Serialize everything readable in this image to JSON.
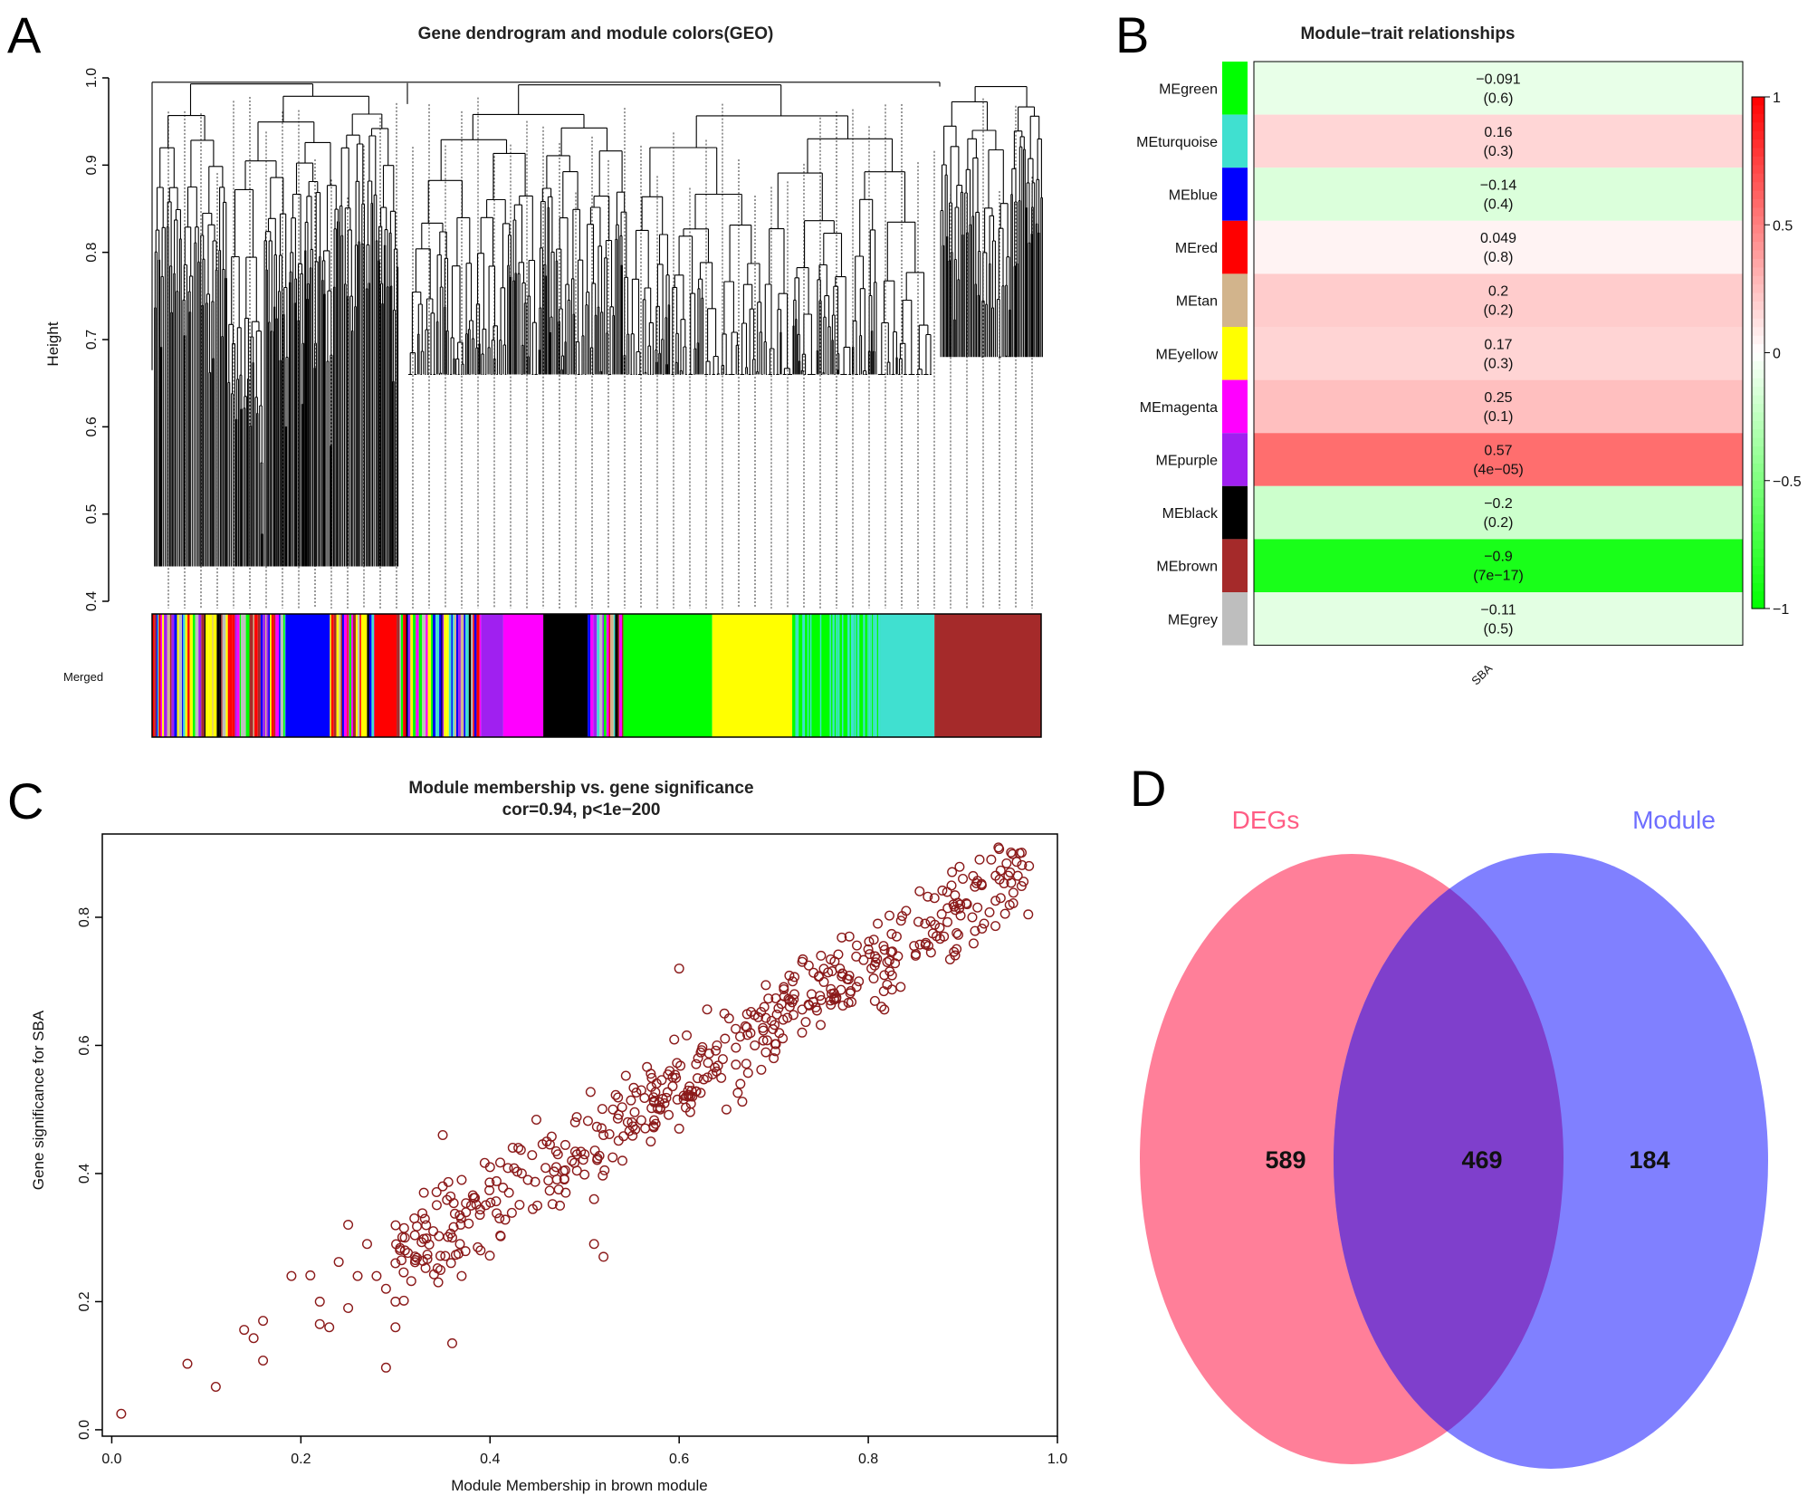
{
  "panels": {
    "A": {
      "letter": "A"
    },
    "B": {
      "letter": "B"
    },
    "C": {
      "letter": "C"
    },
    "D": {
      "letter": "D"
    }
  },
  "chart_data": [
    {
      "panel": "A",
      "type": "dendrogram",
      "title": "Gene dendrogram and module colors(GEO)",
      "ylabel": "Height",
      "ylim": [
        0.4,
        1.0
      ],
      "yticks": [
        "0.4",
        "0.5",
        "0.6",
        "0.7",
        "0.8",
        "0.9",
        "1.0"
      ],
      "color_row_label": "Merged",
      "module_order": [
        "mixed",
        "blue",
        "mixed",
        "red",
        "mixed",
        "purple",
        "magenta",
        "black",
        "mixed",
        "green",
        "yellow",
        "green",
        "turquoise",
        "brown"
      ],
      "module_colors": {
        "blue": "#0000ff",
        "red": "#ff0000",
        "purple": "#a020f0",
        "magenta": "#ff00ff",
        "black": "#000000",
        "green": "#00ff00",
        "yellow": "#ffff00",
        "turquoise": "#40e0d0",
        "brown": "#a52a2a",
        "tan": "#d2b48c",
        "grey": "#bebebe"
      }
    },
    {
      "panel": "B",
      "type": "heatmap",
      "title": "Module−trait relationships",
      "xlabel": "SBA",
      "rows": [
        {
          "module": "MEgreen",
          "color": "#00ff00",
          "cor": "−0.091",
          "p": "(0.6)",
          "value": -0.091
        },
        {
          "module": "MEturquoise",
          "color": "#40e0d0",
          "cor": "0.16",
          "p": "(0.3)",
          "value": 0.16
        },
        {
          "module": "MEblue",
          "color": "#0000ff",
          "cor": "−0.14",
          "p": "(0.4)",
          "value": -0.14
        },
        {
          "module": "MEred",
          "color": "#ff0000",
          "cor": "0.049",
          "p": "(0.8)",
          "value": 0.049
        },
        {
          "module": "MEtan",
          "color": "#d2b48c",
          "cor": "0.2",
          "p": "(0.2)",
          "value": 0.2
        },
        {
          "module": "MEyellow",
          "color": "#ffff00",
          "cor": "0.17",
          "p": "(0.3)",
          "value": 0.17
        },
        {
          "module": "MEmagenta",
          "color": "#ff00ff",
          "cor": "0.25",
          "p": "(0.1)",
          "value": 0.25
        },
        {
          "module": "MEpurple",
          "color": "#a020f0",
          "cor": "0.57",
          "p": "(4e−05)",
          "value": 0.57
        },
        {
          "module": "MEblack",
          "color": "#000000",
          "cor": "−0.2",
          "p": "(0.2)",
          "value": -0.2
        },
        {
          "module": "MEbrown",
          "color": "#a52a2a",
          "cor": "−0.9",
          "p": "(7e−17)",
          "value": -0.9
        },
        {
          "module": "MEgrey",
          "color": "#bebebe",
          "cor": "−0.11",
          "p": "(0.5)",
          "value": -0.11
        }
      ],
      "colorbar": {
        "range": [
          -1,
          1
        ],
        "ticks": [
          "1",
          "0.5",
          "0",
          "−0.5",
          "−1"
        ],
        "ticks_values": [
          1,
          0.5,
          0,
          -0.5,
          -1
        ]
      }
    },
    {
      "panel": "C",
      "type": "scatter",
      "title": "Module membership vs. gene significance",
      "subtitle": "cor=0.94, p<1e−200",
      "xlabel": "Module Membership in brown module",
      "ylabel": "Gene significance for  SBA",
      "xlim": [
        -0.01,
        1.0
      ],
      "ylim": [
        -0.01,
        0.93
      ],
      "xticks": [
        "0.0",
        "0.2",
        "0.4",
        "0.6",
        "0.8",
        "1.0"
      ],
      "xticks_values": [
        0,
        0.2,
        0.4,
        0.6,
        0.8,
        1.0
      ],
      "yticks": [
        "0.0",
        "0.2",
        "0.4",
        "0.6",
        "0.8"
      ],
      "yticks_values": [
        0,
        0.2,
        0.4,
        0.6,
        0.8
      ],
      "point_color": "#8b1a1a",
      "points": [
        [
          0.01,
          0.025
        ],
        [
          0.08,
          0.103
        ],
        [
          0.11,
          0.067
        ],
        [
          0.14,
          0.156
        ],
        [
          0.15,
          0.143
        ],
        [
          0.16,
          0.17
        ],
        [
          0.16,
          0.108
        ],
        [
          0.19,
          0.24
        ],
        [
          0.21,
          0.241
        ],
        [
          0.22,
          0.2
        ],
        [
          0.22,
          0.165
        ],
        [
          0.23,
          0.16
        ],
        [
          0.24,
          0.262
        ],
        [
          0.25,
          0.19
        ],
        [
          0.25,
          0.32
        ],
        [
          0.26,
          0.24
        ],
        [
          0.27,
          0.29
        ],
        [
          0.28,
          0.24
        ],
        [
          0.29,
          0.22
        ],
        [
          0.3,
          0.26
        ],
        [
          0.3,
          0.2
        ],
        [
          0.31,
          0.28
        ],
        [
          0.32,
          0.33
        ],
        [
          0.33,
          0.37
        ],
        [
          0.34,
          0.31
        ],
        [
          0.35,
          0.38
        ],
        [
          0.36,
          0.3
        ],
        [
          0.37,
          0.24
        ],
        [
          0.37,
          0.39
        ],
        [
          0.38,
          0.35
        ],
        [
          0.39,
          0.28
        ],
        [
          0.4,
          0.41
        ],
        [
          0.41,
          0.33
        ],
        [
          0.42,
          0.37
        ],
        [
          0.43,
          0.44
        ],
        [
          0.44,
          0.39
        ],
        [
          0.45,
          0.35
        ],
        [
          0.46,
          0.45
        ],
        [
          0.47,
          0.41
        ],
        [
          0.48,
          0.37
        ],
        [
          0.49,
          0.48
        ],
        [
          0.5,
          0.43
        ],
        [
          0.51,
          0.36
        ],
        [
          0.52,
          0.46
        ],
        [
          0.53,
          0.5
        ],
        [
          0.54,
          0.42
        ],
        [
          0.55,
          0.48
        ],
        [
          0.56,
          0.53
        ],
        [
          0.57,
          0.45
        ],
        [
          0.58,
          0.5
        ],
        [
          0.59,
          0.56
        ],
        [
          0.6,
          0.47
        ],
        [
          0.61,
          0.52
        ],
        [
          0.62,
          0.58
        ],
        [
          0.63,
          0.55
        ],
        [
          0.64,
          0.6
        ],
        [
          0.65,
          0.5
        ],
        [
          0.66,
          0.57
        ],
        [
          0.67,
          0.63
        ],
        [
          0.68,
          0.6
        ],
        [
          0.69,
          0.66
        ],
        [
          0.7,
          0.58
        ],
        [
          0.71,
          0.64
        ],
        [
          0.72,
          0.7
        ],
        [
          0.73,
          0.62
        ],
        [
          0.74,
          0.68
        ],
        [
          0.75,
          0.74
        ],
        [
          0.76,
          0.67
        ],
        [
          0.77,
          0.72
        ],
        [
          0.78,
          0.77
        ],
        [
          0.79,
          0.7
        ],
        [
          0.8,
          0.75
        ],
        [
          0.81,
          0.79
        ],
        [
          0.82,
          0.73
        ],
        [
          0.83,
          0.77
        ],
        [
          0.84,
          0.81
        ],
        [
          0.85,
          0.74
        ],
        [
          0.86,
          0.79
        ],
        [
          0.87,
          0.83
        ],
        [
          0.88,
          0.77
        ],
        [
          0.89,
          0.82
        ],
        [
          0.9,
          0.86
        ],
        [
          0.91,
          0.8
        ],
        [
          0.92,
          0.85
        ],
        [
          0.93,
          0.89
        ],
        [
          0.94,
          0.83
        ],
        [
          0.95,
          0.87
        ],
        [
          0.96,
          0.9
        ],
        [
          0.97,
          0.88
        ],
        [
          0.6,
          0.72
        ],
        [
          0.36,
          0.135
        ],
        [
          0.29,
          0.097
        ],
        [
          0.52,
          0.27
        ],
        [
          0.51,
          0.29
        ],
        [
          0.3,
          0.16
        ],
        [
          0.35,
          0.46
        ]
      ]
    },
    {
      "panel": "D",
      "type": "venn",
      "sets": [
        {
          "name": "DEGs",
          "color": "#ff7f99",
          "label_color": "#ff5c84"
        },
        {
          "name": "Module",
          "color": "#8080ff",
          "label_color": "#6e6eff"
        }
      ],
      "overlap_color": "#7f3fcc",
      "counts": {
        "left_only": "589",
        "overlap": "469",
        "right_only": "184"
      }
    }
  ]
}
